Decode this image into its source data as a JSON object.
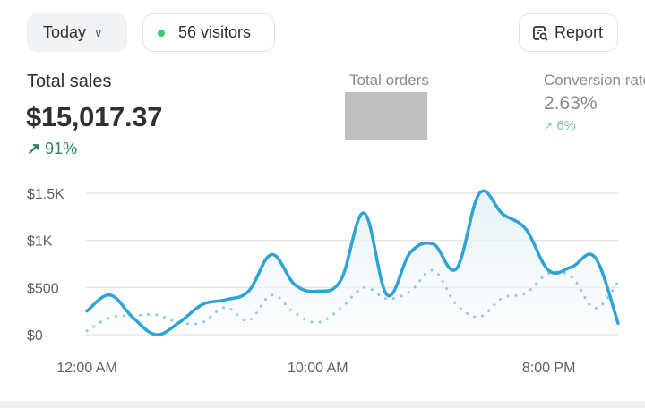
{
  "header": {
    "period_label": "Today",
    "visitors_label": "56 visitors",
    "report_label": "Report",
    "live_dot_color": "#29d27a"
  },
  "metrics": {
    "total_sales": {
      "label": "Total sales",
      "value": "$15,017.37",
      "change": "91%",
      "change_icon": "arrow-up-right"
    },
    "total_orders": {
      "label": "Total orders"
    },
    "conversion_rate": {
      "label": "Conversion rate",
      "value": "2.63%",
      "change": "6%",
      "change_icon": "arrow-up-right"
    }
  },
  "chart_data": {
    "type": "line",
    "x": [
      0,
      1,
      2,
      3,
      4,
      5,
      6,
      7,
      8,
      9,
      10,
      11,
      12,
      13,
      14,
      15,
      16,
      17,
      18,
      19,
      20,
      21,
      22,
      23
    ],
    "x_tick_labels": [
      {
        "hour": 0,
        "label": "12:00 AM"
      },
      {
        "hour": 10,
        "label": "10:00 AM"
      },
      {
        "hour": 20,
        "label": "8:00 PM"
      }
    ],
    "y_ticks": [
      {
        "value": 0,
        "label": "$0"
      },
      {
        "value": 500,
        "label": "$500"
      },
      {
        "value": 1000,
        "label": "$1K"
      },
      {
        "value": 1500,
        "label": "$1.5K"
      }
    ],
    "ylim": [
      0,
      1500
    ],
    "grid": true,
    "series": [
      {
        "style": "solid",
        "color": "#2ea3d6",
        "values": [
          250,
          420,
          180,
          0,
          130,
          320,
          370,
          460,
          850,
          530,
          460,
          580,
          1290,
          420,
          870,
          960,
          700,
          1500,
          1280,
          1120,
          680,
          720,
          820,
          120
        ]
      },
      {
        "style": "dotted",
        "color": "#8ccbe3",
        "values": [
          40,
          180,
          200,
          210,
          130,
          130,
          290,
          150,
          420,
          230,
          130,
          280,
          500,
          380,
          460,
          680,
          320,
          190,
          390,
          440,
          650,
          610,
          280,
          560
        ]
      }
    ]
  }
}
